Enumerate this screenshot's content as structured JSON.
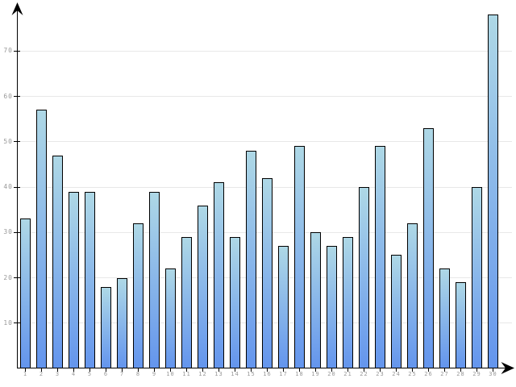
{
  "chart_data": {
    "type": "bar",
    "title": "",
    "xlabel": "",
    "ylabel": "",
    "categories": [
      "1",
      "2",
      "3",
      "4",
      "5",
      "6",
      "7",
      "8",
      "9",
      "10",
      "11",
      "12",
      "13",
      "14",
      "15",
      "16",
      "17",
      "18",
      "19",
      "20",
      "21",
      "22",
      "23",
      "24",
      "25",
      "26",
      "27",
      "28",
      "29",
      "30"
    ],
    "values": [
      33,
      57,
      47,
      39,
      39,
      18,
      20,
      32,
      39,
      22,
      29,
      36,
      41,
      29,
      48,
      42,
      27,
      49,
      30,
      27,
      29,
      40,
      49,
      25,
      32,
      53,
      22,
      19,
      40,
      78
    ],
    "ylim": [
      0,
      80
    ],
    "y_ticks": [
      10,
      20,
      30,
      40,
      50,
      60,
      70
    ],
    "grid": "horizontal",
    "legend": "none",
    "colors": {
      "bar_top": "#aed8e6",
      "bar_bottom": "#6495ed",
      "bar_border": "#000000",
      "gridline": "#e8e8e8",
      "axis": "#000000",
      "tick_label": "#999999",
      "background": "#ffffff"
    }
  }
}
